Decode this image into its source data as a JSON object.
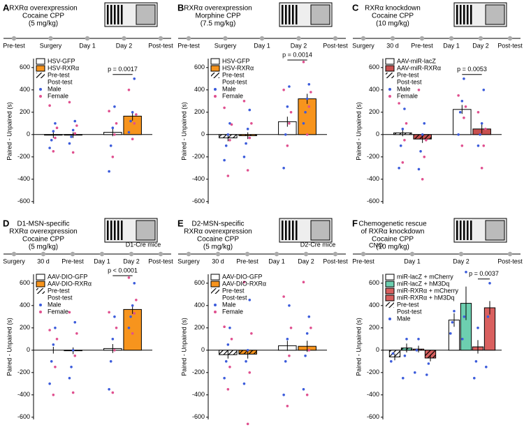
{
  "chart_data": [
    {
      "type": "bar",
      "letter": "A",
      "title": [
        "RXRα overexpression",
        "Cocaine CPP",
        "(5 mg/kg)"
      ],
      "timeline": [
        "Pre-test",
        "Surgery",
        "Day 1",
        "Day 2",
        "Post-test"
      ],
      "ylabel": "Paired - Unpaired (s)",
      "ylim": [
        -620,
        680
      ],
      "yticks": [
        -600,
        -400,
        -200,
        0,
        200,
        400,
        600
      ],
      "categories": [
        "Pre-test",
        "Post-test"
      ],
      "series": [
        {
          "name": "HSV-GFP",
          "color": "#ffffff",
          "values": [
            -5,
            20
          ],
          "errors": [
            25,
            35
          ]
        },
        {
          "name": "HSV-RXRα",
          "color": "#f7941d",
          "values": [
            -5,
            165
          ],
          "errors": [
            25,
            40
          ]
        }
      ],
      "dots": [
        {
          "name": "Male",
          "color": "#3b5bdb",
          "values": [
            [
              -120,
              -50,
              30,
              100
            ],
            [
              -80,
              -20,
              40,
              120
            ],
            [
              -330,
              -100,
              60,
              250
            ],
            [
              20,
              120,
              200,
              500
            ]
          ]
        },
        {
          "name": "Female",
          "color": "#e0508f",
          "values": [
            [
              -150,
              -30,
              60,
              260
            ],
            [
              -160,
              10,
              80,
              290
            ],
            [
              -200,
              0,
              100,
              210
            ],
            [
              -40,
              100,
              180,
              400
            ]
          ]
        }
      ],
      "pvalue": "p = 0.0017"
    },
    {
      "type": "bar",
      "letter": "B",
      "title": [
        "RXRα overexpression",
        "Morphine CPP",
        "(7.5 mg/kg)"
      ],
      "timeline": [
        "Pre-test",
        "Surgery",
        "Day 1",
        "Day 2",
        "Post-test"
      ],
      "ylabel": "Paired - Unpaired (s)",
      "ylim": [
        -620,
        680
      ],
      "yticks": [
        -600,
        -400,
        -200,
        0,
        200,
        400,
        600
      ],
      "categories": [
        "Pre-test",
        "Post-test"
      ],
      "series": [
        {
          "name": "HSV-GFP",
          "color": "#ffffff",
          "values": [
            -30,
            115
          ],
          "errors": [
            30,
            45
          ]
        },
        {
          "name": "HSV-RXRα",
          "color": "#f7941d",
          "values": [
            -10,
            320
          ],
          "errors": [
            30,
            45
          ]
        }
      ],
      "dots": [
        {
          "name": "Male",
          "color": "#3b5bdb",
          "values": [
            [
              -230,
              -100,
              0,
              100
            ],
            [
              -200,
              -80,
              50,
              220
            ],
            [
              -300,
              0,
              250,
              430
            ],
            [
              100,
              200,
              320,
              450
            ]
          ]
        },
        {
          "name": "Female",
          "color": "#e0508f",
          "values": [
            [
              -370,
              -50,
              90,
              240
            ],
            [
              -320,
              -30,
              100,
              300
            ],
            [
              -100,
              100,
              200,
              400
            ],
            [
              0,
              250,
              380,
              650
            ]
          ]
        }
      ],
      "pvalue": "p = 0.0014"
    },
    {
      "type": "bar",
      "letter": "C",
      "title": [
        "RXRα knockdown",
        "Cocaine CPP",
        "(10 mg/kg)"
      ],
      "timeline": [
        "Surgery",
        "30 d",
        "Pre-test",
        "Day 1",
        "Day 2",
        "Post-test"
      ],
      "ylabel": "Paired - Unpaired (s)",
      "ylim": [
        -620,
        680
      ],
      "yticks": [
        -600,
        -400,
        -200,
        0,
        200,
        400,
        600
      ],
      "categories": [
        "Pre-test",
        "Post-test"
      ],
      "series": [
        {
          "name": "AAV-miR-lacZ",
          "color": "#ffffff",
          "values": [
            15,
            225
          ],
          "errors": [
            30,
            40
          ]
        },
        {
          "name": "AAV-miR-RXRα",
          "color": "#c8504f",
          "values": [
            -40,
            50
          ],
          "errors": [
            35,
            40
          ]
        }
      ],
      "dots": [
        {
          "name": "Male",
          "color": "#3b5bdb",
          "values": [
            [
              -300,
              -100,
              50,
              230
            ],
            [
              -310,
              -150,
              0,
              100
            ],
            [
              0,
              200,
              300,
              500
            ],
            [
              -100,
              0,
              100,
              400
            ]
          ]
        },
        {
          "name": "Female",
          "color": "#e0508f",
          "values": [
            [
              -250,
              -50,
              100,
              280
            ],
            [
              -400,
              -200,
              -50,
              400
            ],
            [
              -100,
              150,
              250,
              350
            ],
            [
              -300,
              -100,
              50,
              200
            ]
          ]
        }
      ],
      "pvalue": "p = 0.0053"
    },
    {
      "type": "bar",
      "letter": "D",
      "title": [
        "D1-MSN-specific",
        "RXRα overexpression",
        "Cocaine CPP",
        "(5 mg/kg)"
      ],
      "annotation": "D1-Cre mice",
      "timeline": [
        "Surgery",
        "30 d",
        "Pre-test",
        "Day 1",
        "Day 2",
        "Post-test"
      ],
      "ylabel": "Paired - Unpaired (s)",
      "ylim": [
        -620,
        680
      ],
      "yticks": [
        -600,
        -400,
        -200,
        0,
        200,
        400,
        600
      ],
      "categories": [
        "Pre-test",
        "Post-test"
      ],
      "series": [
        {
          "name": "AAV-DIO-GFP",
          "color": "#ffffff",
          "values": [
            0,
            15
          ],
          "errors": [
            30,
            40
          ]
        },
        {
          "name": "AAV-DIO-RXRα",
          "color": "#f7941d",
          "values": [
            -5,
            365
          ],
          "errors": [
            30,
            40
          ]
        }
      ],
      "dots": [
        {
          "name": "Male",
          "color": "#3b5bdb",
          "values": [
            [
              -300,
              -100,
              50,
              200
            ],
            [
              -250,
              -150,
              0,
              250
            ],
            [
              -350,
              -100,
              100,
              300
            ],
            [
              200,
              300,
              400,
              600
            ]
          ]
        },
        {
          "name": "Female",
          "color": "#e0508f",
          "values": [
            [
              -400,
              -150,
              100,
              180
            ],
            [
              -380,
              -50,
              150,
              340
            ],
            [
              -380,
              0,
              200,
              340
            ],
            [
              150,
              330,
              450,
              650
            ]
          ]
        }
      ],
      "pvalue": "p < 0.0001"
    },
    {
      "type": "bar",
      "letter": "E",
      "title": [
        "D2-MSN-specific",
        "RXRα overexpression",
        "Cocaine CPP",
        "(5 mg/kg)"
      ],
      "annotation": "D2-Cre mice",
      "timeline": [
        "Surgery",
        "30 d",
        "Pre-test",
        "Day 1",
        "Day 2",
        "Post-test"
      ],
      "ylabel": "Paired - Unpaired (s)",
      "ylim": [
        -620,
        680
      ],
      "yticks": [
        -600,
        -400,
        -200,
        0,
        200,
        400,
        600
      ],
      "categories": [
        "Pre-test",
        "Post-test"
      ],
      "series": [
        {
          "name": "AAV-DIO-GFP",
          "color": "#ffffff",
          "values": [
            -40,
            40
          ],
          "errors": [
            35,
            45
          ]
        },
        {
          "name": "AAV-DIO-RXRα",
          "color": "#f7941d",
          "values": [
            -35,
            35
          ],
          "errors": [
            40,
            50
          ]
        }
      ],
      "dots": [
        {
          "name": "Male",
          "color": "#3b5bdb",
          "values": [
            [
              -250,
              -100,
              50,
              200
            ],
            [
              -300,
              -100,
              0,
              450
            ],
            [
              -400,
              -100,
              100,
              400
            ],
            [
              -350,
              -50,
              150,
              300
            ]
          ]
        },
        {
          "name": "Female",
          "color": "#e0508f",
          "values": [
            [
              -350,
              -150,
              100,
              210
            ],
            [
              -660,
              -200,
              150,
              610
            ],
            [
              -500,
              -50,
              200,
              480
            ],
            [
              -400,
              0,
              200,
              610
            ]
          ]
        }
      ]
    },
    {
      "type": "bar",
      "letter": "F",
      "title": [
        "Chemogenetic rescue",
        "of RXRα knockdown",
        "Cocaine CPP",
        "(10 mg/kg)"
      ],
      "annotation": "CNO",
      "timeline": [
        "Pre-test",
        "Day 1",
        "Day 2",
        "Post-test"
      ],
      "ylabel": "Paired - Unpaired (s)",
      "ylim": [
        -620,
        680
      ],
      "yticks": [
        -600,
        -400,
        -200,
        0,
        200,
        400,
        600
      ],
      "categories": [
        "Pre-test",
        "Post-test"
      ],
      "series": [
        {
          "name": "miR-lacZ + mCherry",
          "color": "#ffffff",
          "values": [
            -60,
            270
          ],
          "errors": [
            30,
            60
          ]
        },
        {
          "name": "miR-lacZ + hM3Dq",
          "color": "#6dcfb0",
          "values": [
            20,
            420
          ],
          "errors": [
            40,
            150
          ]
        },
        {
          "name": "miR-RXRα + mCherry",
          "color": "#d9605f",
          "values": [
            10,
            30
          ],
          "errors": [
            30,
            60
          ]
        },
        {
          "name": "miR-RXRα + hM3Dq",
          "color": "#d9605f",
          "values": [
            -70,
            380
          ],
          "errors": [
            30,
            60
          ]
        }
      ],
      "dots": [
        {
          "name": "Male",
          "color": "#3b5bdb",
          "values": [
            [
              -100,
              -30
            ],
            [
              -250,
              -50,
              100
            ],
            [
              -200,
              0,
              100
            ],
            [
              -220,
              -120
            ],
            [
              150,
              250,
              350
            ],
            [
              100,
              300,
              700
            ],
            [
              -250,
              -100,
              200
            ],
            [
              -150,
              300,
              600
            ]
          ]
        }
      ],
      "pvalue": "p = 0.0037"
    }
  ]
}
